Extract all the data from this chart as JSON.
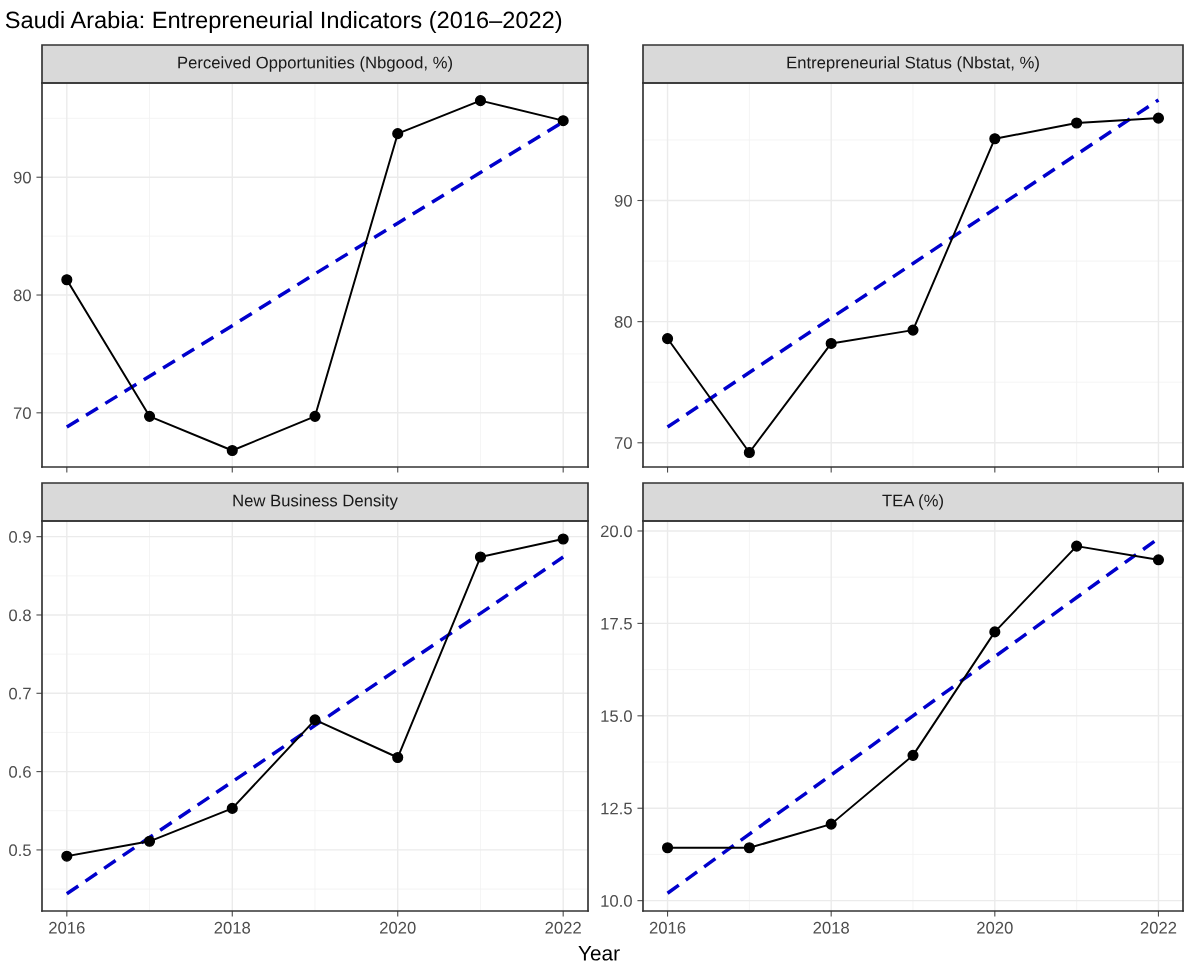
{
  "chart_data": [
    {
      "type": "line",
      "title": "Perceived Opportunities (Nbgood, %)",
      "annotations": [
        "Saudi Arabia: Entrepreneurial Indicators (2016–2022)"
      ],
      "x": [
        2016,
        2017,
        2018,
        2019,
        2020,
        2021,
        2022
      ],
      "series": [
        {
          "color": "#000000",
          "marker": "circle",
          "line_style": "solid",
          "values": [
            81.3,
            69.7,
            66.8,
            69.7,
            93.7,
            96.5,
            94.8
          ]
        },
        {
          "color": "#0000cc",
          "marker": "none",
          "line_style": "dashed",
          "values": [
            68.8,
            73.1,
            77.4,
            81.8,
            86.1,
            90.4,
            94.7
          ]
        }
      ],
      "xlim": [
        2015.7,
        2022.3
      ],
      "xticks": [
        2016,
        2018,
        2020,
        2022
      ],
      "ylim": [
        65.4,
        98.0
      ],
      "yticks": [
        70,
        80,
        90
      ],
      "grid": true,
      "tick_labels": "y"
    },
    {
      "type": "line",
      "title": "Entrepreneurial Status (Nbstat, %)",
      "x": [
        2016,
        2017,
        2018,
        2019,
        2020,
        2021,
        2022
      ],
      "series": [
        {
          "color": "#000000",
          "marker": "circle",
          "line_style": "solid",
          "values": [
            78.6,
            69.2,
            78.2,
            79.3,
            95.1,
            96.4,
            96.8
          ]
        },
        {
          "color": "#0000cc",
          "marker": "none",
          "line_style": "dashed",
          "values": [
            71.3,
            75.8,
            80.3,
            84.8,
            89.3,
            93.8,
            98.3
          ]
        }
      ],
      "xlim": [
        2015.7,
        2022.3
      ],
      "xticks": [
        2016,
        2018,
        2020,
        2022
      ],
      "ylim": [
        68.0,
        99.7
      ],
      "yticks": [
        70,
        80,
        90
      ],
      "grid": true,
      "tick_labels": "y"
    },
    {
      "type": "line",
      "title": "New Business Density",
      "xlabel": "Year",
      "x": [
        2016,
        2017,
        2018,
        2019,
        2020,
        2021,
        2022
      ],
      "series": [
        {
          "color": "#000000",
          "marker": "circle",
          "line_style": "solid",
          "values": [
            0.492,
            0.511,
            0.553,
            0.666,
            0.618,
            0.874,
            0.897
          ]
        },
        {
          "color": "#0000cc",
          "marker": "none",
          "line_style": "dashed",
          "values": [
            0.444,
            0.516,
            0.587,
            0.659,
            0.731,
            0.802,
            0.874
          ]
        }
      ],
      "xlim": [
        2015.7,
        2022.3
      ],
      "xticks": [
        2016,
        2018,
        2020,
        2022
      ],
      "ylim": [
        0.422,
        0.92
      ],
      "yticks": [
        0.5,
        0.6,
        0.7,
        0.8,
        0.9
      ],
      "grid": true
    },
    {
      "type": "line",
      "title": "TEA (%)",
      "x": [
        2016,
        2017,
        2018,
        2019,
        2020,
        2021,
        2022
      ],
      "series": [
        {
          "color": "#000000",
          "marker": "circle",
          "line_style": "solid",
          "values": [
            11.43,
            11.43,
            12.07,
            13.93,
            17.27,
            19.59,
            19.22
          ]
        },
        {
          "color": "#0000cc",
          "marker": "none",
          "line_style": "dashed",
          "values": [
            10.2,
            11.8,
            13.4,
            15.0,
            16.6,
            18.2,
            19.8
          ]
        }
      ],
      "xlim": [
        2015.7,
        2022.3
      ],
      "xticks": [
        2016,
        2018,
        2020,
        2022
      ],
      "ylim": [
        9.72,
        20.27
      ],
      "yticks": [
        {
          "value": 10,
          "label": "10.0"
        },
        {
          "value": 12.5,
          "label": "12.5"
        },
        {
          "value": 15,
          "label": "15.0"
        },
        {
          "value": 17.5,
          "label": "17.5"
        },
        {
          "value": 20,
          "label": "20.0"
        }
      ],
      "grid": true
    }
  ]
}
